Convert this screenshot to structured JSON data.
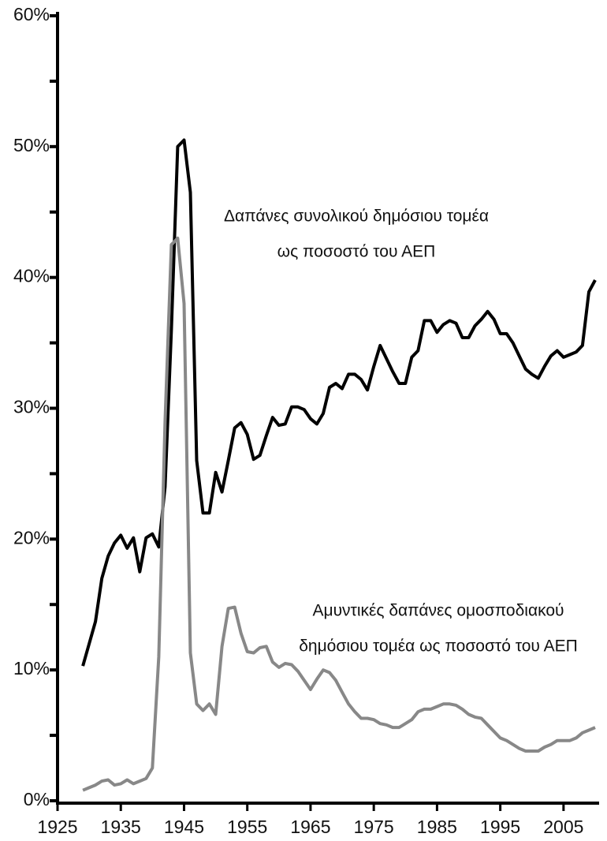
{
  "chart_data": {
    "type": "line",
    "x": [
      1929,
      1930,
      1931,
      1932,
      1933,
      1934,
      1935,
      1936,
      1937,
      1938,
      1939,
      1940,
      1941,
      1942,
      1943,
      1944,
      1945,
      1946,
      1947,
      1948,
      1949,
      1950,
      1951,
      1952,
      1953,
      1954,
      1955,
      1956,
      1957,
      1958,
      1959,
      1960,
      1961,
      1962,
      1963,
      1964,
      1965,
      1966,
      1967,
      1968,
      1969,
      1970,
      1971,
      1972,
      1973,
      1974,
      1975,
      1976,
      1977,
      1978,
      1979,
      1980,
      1981,
      1982,
      1983,
      1984,
      1985,
      1986,
      1987,
      1988,
      1989,
      1990,
      1991,
      1992,
      1993,
      1994,
      1995,
      1996,
      1997,
      1998,
      1999,
      2000,
      2001,
      2002,
      2003,
      2004,
      2005,
      2006,
      2007,
      2008,
      2009,
      2010
    ],
    "series": [
      {
        "color": "#000000",
        "values": [
          10.3,
          12,
          13.7,
          17,
          18.7,
          19.7,
          20.3,
          19.3,
          20.1,
          17.5,
          20.1,
          20.4,
          19.4,
          24,
          36,
          50,
          50.5,
          46.5,
          26,
          22,
          22,
          25.1,
          23.6,
          26,
          28.5,
          28.9,
          28,
          26.1,
          26.4,
          27.9,
          29.3,
          28.7,
          28.8,
          30.1,
          30.1,
          29.9,
          29.2,
          28.8,
          29.6,
          31.6,
          31.9,
          31.5,
          32.6,
          32.6,
          32.2,
          31.4,
          33.2,
          34.8,
          33.8,
          32.8,
          31.9,
          31.9,
          33.9,
          34.4,
          36.7,
          36.7,
          35.8,
          36.4,
          36.7,
          36.5,
          35.4,
          35.4,
          36.3,
          36.8,
          37.4,
          36.8,
          35.7,
          35.7,
          35,
          34,
          33,
          32.6,
          32.3,
          33.2,
          34,
          34.4,
          33.9,
          34.1,
          34.3,
          34.8,
          38.9,
          39.8
        ]
      },
      {
        "color": "#888888",
        "values": [
          0.8,
          1,
          1.2,
          1.5,
          1.6,
          1.2,
          1.3,
          1.6,
          1.3,
          1.5,
          1.7,
          2.5,
          11,
          29,
          42.5,
          43,
          38,
          11.3,
          7.4,
          6.9,
          7.4,
          6.6,
          11.8,
          14.7,
          14.8,
          12.8,
          11.4,
          11.3,
          11.7,
          11.8,
          10.6,
          10.2,
          10.5,
          10.4,
          9.9,
          9.2,
          8.5,
          9.3,
          10,
          9.8,
          9.2,
          8.3,
          7.4,
          6.8,
          6.3,
          6.3,
          6.2,
          5.9,
          5.8,
          5.6,
          5.6,
          5.9,
          6.2,
          6.8,
          7,
          7,
          7.2,
          7.4,
          7.4,
          7.3,
          7,
          6.6,
          6.4,
          6.3,
          5.8,
          5.3,
          4.8,
          4.6,
          4.3,
          4,
          3.8,
          3.8,
          3.8,
          4.1,
          4.3,
          4.6,
          4.6,
          4.6,
          4.8,
          5.2,
          5.4,
          5.6
        ]
      }
    ],
    "annotations": [
      {
        "lines": [
          "Δαπάνες συνολικού δημόσιου τομέα",
          "ως ποσοστό του ΑΕΠ"
        ]
      },
      {
        "lines": [
          "Αμυντικές δαπάνες ομοσποδιακού",
          "δημόσιου τομέα ως ποσοστό του ΑΕΠ"
        ]
      }
    ],
    "xlim": [
      1925,
      2011
    ],
    "xticks": [
      1925,
      1935,
      1945,
      1955,
      1965,
      1975,
      1985,
      1995,
      2005
    ],
    "ylim": [
      0,
      60
    ],
    "yticks": [
      {
        "value": 0,
        "label": "0%"
      },
      {
        "value": 10,
        "label": "10%"
      },
      {
        "value": 20,
        "label": "20%"
      },
      {
        "value": 30,
        "label": "30%"
      },
      {
        "value": 40,
        "label": "40%"
      },
      {
        "value": 50,
        "label": "50%"
      },
      {
        "value": 60,
        "label": "60%"
      }
    ],
    "yminorticks": [
      5,
      15,
      25,
      35,
      45,
      55
    ]
  }
}
